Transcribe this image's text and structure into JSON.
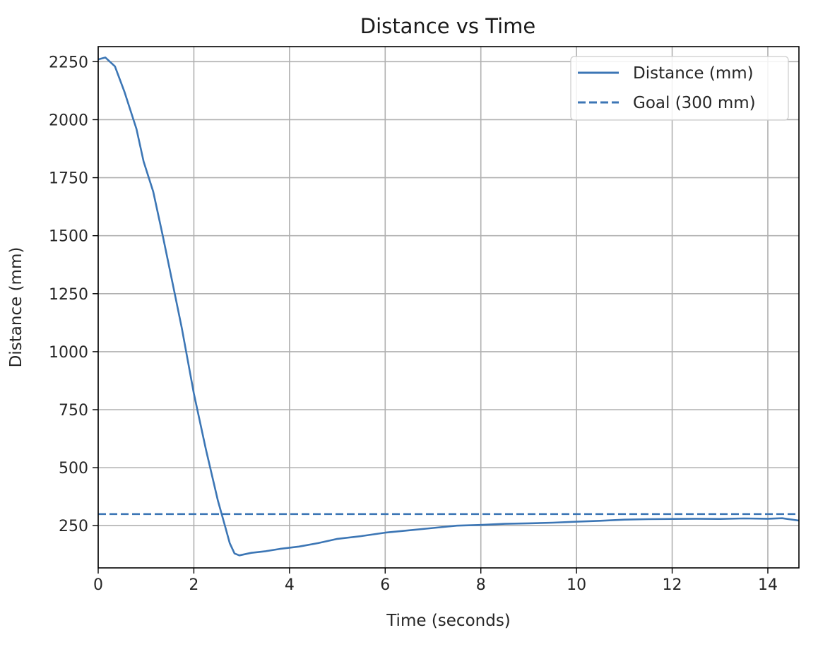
{
  "chart_data": {
    "type": "line",
    "title": "Distance vs Time",
    "xlabel": "Time (seconds)",
    "ylabel": "Distance (mm)",
    "xlim": [
      0,
      14.65
    ],
    "ylim": [
      68,
      2315
    ],
    "xticks": [
      0,
      2,
      4,
      6,
      8,
      10,
      12,
      14
    ],
    "yticks": [
      250,
      500,
      750,
      1000,
      1250,
      1500,
      1750,
      2000,
      2250
    ],
    "grid": true,
    "legend_position": "top-right",
    "series": [
      {
        "name": "Distance (mm)",
        "style": "solid",
        "color": "#3c76b5",
        "points": [
          [
            0.0,
            2260
          ],
          [
            0.15,
            2268
          ],
          [
            0.35,
            2230
          ],
          [
            0.55,
            2120
          ],
          [
            0.8,
            1960
          ],
          [
            0.95,
            1820
          ],
          [
            1.15,
            1690
          ],
          [
            1.35,
            1500
          ],
          [
            1.55,
            1300
          ],
          [
            1.75,
            1100
          ],
          [
            2.0,
            820
          ],
          [
            2.25,
            580
          ],
          [
            2.5,
            360
          ],
          [
            2.65,
            250
          ],
          [
            2.75,
            175
          ],
          [
            2.85,
            130
          ],
          [
            2.95,
            122
          ],
          [
            3.2,
            133
          ],
          [
            3.5,
            140
          ],
          [
            3.8,
            150
          ],
          [
            4.2,
            160
          ],
          [
            4.6,
            175
          ],
          [
            5.0,
            193
          ],
          [
            5.5,
            205
          ],
          [
            6.0,
            220
          ],
          [
            6.5,
            230
          ],
          [
            7.0,
            240
          ],
          [
            7.5,
            250
          ],
          [
            8.0,
            253
          ],
          [
            8.5,
            258
          ],
          [
            9.0,
            260
          ],
          [
            9.5,
            263
          ],
          [
            10.0,
            267
          ],
          [
            10.5,
            271
          ],
          [
            11.0,
            276
          ],
          [
            11.5,
            278
          ],
          [
            12.0,
            279
          ],
          [
            12.5,
            280
          ],
          [
            13.0,
            279
          ],
          [
            13.5,
            281
          ],
          [
            14.0,
            280
          ],
          [
            14.3,
            282
          ],
          [
            14.65,
            272
          ]
        ]
      },
      {
        "name": "Goal (300 mm)",
        "style": "dashed",
        "color": "#3c76b5",
        "points": [
          [
            0.0,
            300
          ],
          [
            14.65,
            300
          ]
        ]
      }
    ]
  }
}
